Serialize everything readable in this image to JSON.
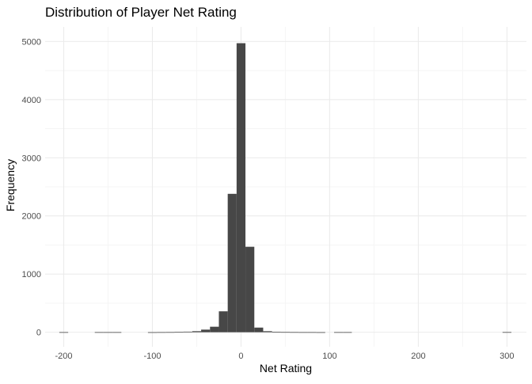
{
  "chart_data": {
    "type": "bar",
    "title": "Distribution of Player Net Rating",
    "xlabel": "Net Rating",
    "ylabel": "Frequency",
    "xlim": [
      -221,
      322
    ],
    "ylim": [
      -250,
      5250
    ],
    "x_ticks": [
      -200,
      -100,
      0,
      100,
      200,
      300
    ],
    "y_ticks": [
      0,
      1000,
      2000,
      3000,
      4000,
      5000
    ],
    "bin_width": 10,
    "bin_starts": [
      -205,
      -165,
      -155,
      -145,
      -105,
      -95,
      -85,
      -75,
      -65,
      -55,
      -45,
      -35,
      -25,
      -15,
      -5,
      5,
      15,
      25,
      35,
      45,
      55,
      65,
      75,
      85,
      105,
      115,
      295
    ],
    "values": [
      2,
      2,
      2,
      2,
      1,
      2,
      3,
      5,
      10,
      18,
      45,
      95,
      360,
      2380,
      4970,
      1470,
      80,
      18,
      8,
      4,
      3,
      2,
      2,
      1,
      2,
      2,
      3
    ],
    "grid": true,
    "legend": "none",
    "colors": {
      "bar": "#474747",
      "grid_major": "#ebebeb",
      "grid_minor": "#f5f5f5",
      "axis_text": "#4d4d4d",
      "title_text": "#000000"
    }
  }
}
